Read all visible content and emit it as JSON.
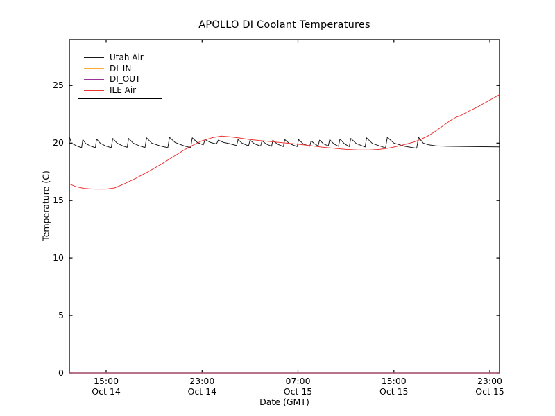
{
  "figure": {
    "title": "APOLLO DI Coolant Temperatures",
    "background_color": "#ffffff",
    "axis_color": "#000000"
  },
  "chart_data": {
    "type": "line",
    "title": "APOLLO DI Coolant Temperatures",
    "xlabel": "Date (GMT)",
    "ylabel": "Temperature (C)",
    "grid": false,
    "legend_position": "upper left",
    "x_unit": "hours since Oct 14 00:00 GMT",
    "xlim": [
      11.93,
      47.81
    ],
    "ylim": [
      0,
      29
    ],
    "yticks": [
      0,
      5,
      10,
      15,
      20,
      25
    ],
    "xticks": [
      {
        "value": 15,
        "time": "15:00",
        "date": "Oct 14"
      },
      {
        "value": 23,
        "time": "23:00",
        "date": "Oct 14"
      },
      {
        "value": 31,
        "time": "07:00",
        "date": "Oct 15"
      },
      {
        "value": 39,
        "time": "15:00",
        "date": "Oct 15"
      },
      {
        "value": 47,
        "time": "23:00",
        "date": "Oct 15"
      }
    ],
    "series": [
      {
        "name": "Utah Air",
        "color": "#1a1a1a",
        "width": 1,
        "opacity": 1,
        "points": [
          [
            11.93,
            20.55
          ],
          [
            12.1,
            20.0
          ],
          [
            12.55,
            19.75
          ],
          [
            12.95,
            19.6
          ],
          [
            13.05,
            20.3
          ],
          [
            13.3,
            19.95
          ],
          [
            13.75,
            19.72
          ],
          [
            14.1,
            19.6
          ],
          [
            14.2,
            20.35
          ],
          [
            14.5,
            20.0
          ],
          [
            14.95,
            19.75
          ],
          [
            15.42,
            19.6
          ],
          [
            15.55,
            20.4
          ],
          [
            15.9,
            20.0
          ],
          [
            16.4,
            19.75
          ],
          [
            16.75,
            19.63
          ],
          [
            16.87,
            20.4
          ],
          [
            17.25,
            20.0
          ],
          [
            17.8,
            19.75
          ],
          [
            18.24,
            19.62
          ],
          [
            18.37,
            20.45
          ],
          [
            18.8,
            20.0
          ],
          [
            19.5,
            19.75
          ],
          [
            20.14,
            19.6
          ],
          [
            20.28,
            20.5
          ],
          [
            20.75,
            20.05
          ],
          [
            21.5,
            19.75
          ],
          [
            22.05,
            19.6
          ],
          [
            22.18,
            20.45
          ],
          [
            22.6,
            20.05
          ],
          [
            23.1,
            19.85
          ],
          [
            23.25,
            20.3
          ],
          [
            23.7,
            20.05
          ],
          [
            24.2,
            19.92
          ],
          [
            24.35,
            20.25
          ],
          [
            24.8,
            20.05
          ],
          [
            25.3,
            19.95
          ],
          [
            25.88,
            19.78
          ],
          [
            26.0,
            20.3
          ],
          [
            26.35,
            19.98
          ],
          [
            26.88,
            19.76
          ],
          [
            27.0,
            20.25
          ],
          [
            27.35,
            19.95
          ],
          [
            27.88,
            19.74
          ],
          [
            28.0,
            20.2
          ],
          [
            28.35,
            19.92
          ],
          [
            28.8,
            19.72
          ],
          [
            28.9,
            20.25
          ],
          [
            29.25,
            19.93
          ],
          [
            29.78,
            19.7
          ],
          [
            29.9,
            20.3
          ],
          [
            30.3,
            19.95
          ],
          [
            30.93,
            19.7
          ],
          [
            31.05,
            20.3
          ],
          [
            31.45,
            19.92
          ],
          [
            31.98,
            19.73
          ],
          [
            32.1,
            20.2
          ],
          [
            32.4,
            19.92
          ],
          [
            32.68,
            19.76
          ],
          [
            32.8,
            20.25
          ],
          [
            33.15,
            19.92
          ],
          [
            33.53,
            19.76
          ],
          [
            33.65,
            20.3
          ],
          [
            34.0,
            19.92
          ],
          [
            34.38,
            19.72
          ],
          [
            34.5,
            20.35
          ],
          [
            34.88,
            19.93
          ],
          [
            35.28,
            19.7
          ],
          [
            35.4,
            20.4
          ],
          [
            35.85,
            19.97
          ],
          [
            36.6,
            19.66
          ],
          [
            36.72,
            20.45
          ],
          [
            37.2,
            19.97
          ],
          [
            38.3,
            19.58
          ],
          [
            38.45,
            20.5
          ],
          [
            39.0,
            20.0
          ],
          [
            39.9,
            19.72
          ],
          [
            40.9,
            19.55
          ],
          [
            41.05,
            20.5
          ],
          [
            41.45,
            20.0
          ],
          [
            41.9,
            19.85
          ],
          [
            42.5,
            19.76
          ],
          [
            43.5,
            19.72
          ],
          [
            45.0,
            19.7
          ],
          [
            47.81,
            19.67
          ]
        ]
      },
      {
        "name": "DI_IN",
        "color": "#ffaa33",
        "width": 1.3,
        "opacity": 1,
        "points": [
          [
            11.93,
            0
          ],
          [
            47.81,
            0
          ]
        ]
      },
      {
        "name": "DI_OUT",
        "color": "#993399",
        "width": 1.3,
        "opacity": 0.75,
        "points": [
          [
            11.93,
            0
          ],
          [
            47.81,
            0
          ]
        ]
      },
      {
        "name": "ILE Air",
        "color": "#ee3333",
        "width": 1,
        "opacity": 1,
        "points": [
          [
            11.93,
            16.45
          ],
          [
            12.5,
            16.2
          ],
          [
            13.2,
            16.05
          ],
          [
            14.0,
            16.0
          ],
          [
            15.0,
            16.0
          ],
          [
            15.7,
            16.1
          ],
          [
            16.5,
            16.45
          ],
          [
            17.5,
            16.95
          ],
          [
            18.5,
            17.5
          ],
          [
            19.5,
            18.1
          ],
          [
            20.5,
            18.75
          ],
          [
            21.5,
            19.4
          ],
          [
            22.3,
            19.85
          ],
          [
            23.0,
            20.2
          ],
          [
            23.8,
            20.45
          ],
          [
            24.6,
            20.6
          ],
          [
            25.3,
            20.55
          ],
          [
            26.0,
            20.45
          ],
          [
            27.0,
            20.3
          ],
          [
            28.0,
            20.2
          ],
          [
            29.0,
            20.1
          ],
          [
            30.0,
            20.0
          ],
          [
            31.0,
            19.9
          ],
          [
            32.0,
            19.78
          ],
          [
            33.0,
            19.65
          ],
          [
            34.0,
            19.55
          ],
          [
            35.0,
            19.45
          ],
          [
            36.0,
            19.4
          ],
          [
            37.0,
            19.4
          ],
          [
            37.8,
            19.45
          ],
          [
            38.5,
            19.55
          ],
          [
            39.2,
            19.7
          ],
          [
            40.0,
            19.9
          ],
          [
            40.7,
            20.1
          ],
          [
            41.3,
            20.35
          ],
          [
            41.9,
            20.65
          ],
          [
            42.5,
            21.05
          ],
          [
            43.1,
            21.5
          ],
          [
            43.7,
            21.95
          ],
          [
            44.2,
            22.25
          ],
          [
            44.6,
            22.4
          ],
          [
            45.2,
            22.75
          ],
          [
            45.9,
            23.1
          ],
          [
            46.6,
            23.5
          ],
          [
            47.3,
            23.9
          ],
          [
            47.81,
            24.2
          ]
        ]
      }
    ]
  }
}
